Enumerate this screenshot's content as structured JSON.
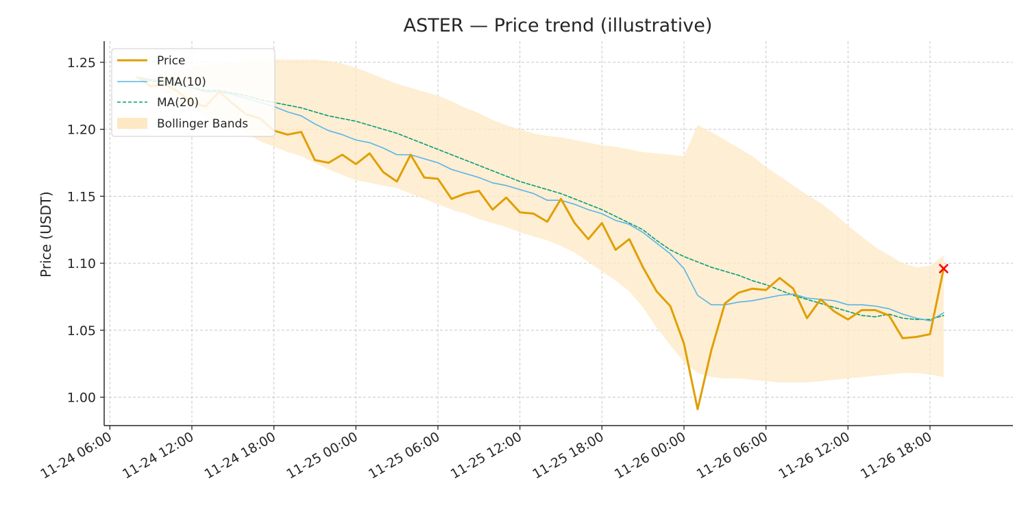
{
  "chart_data": {
    "type": "line",
    "title": "ASTER — Price trend (illustrative)",
    "xlabel": "",
    "ylabel": "Price (USDT)",
    "ylim": [
      0.9788,
      1.2658
    ],
    "yticks": [
      1.0,
      1.05,
      1.1,
      1.15,
      1.2,
      1.25
    ],
    "ytick_labels": [
      "1.00",
      "1.05",
      "1.10",
      "1.15",
      "1.20",
      "1.25"
    ],
    "xlim": [
      "11-24 05:35",
      "11-27 00:04"
    ],
    "xticks": [
      "11-24 06:00",
      "11-24 12:00",
      "11-24 18:00",
      "11-25 00:00",
      "11-25 06:00",
      "11-25 12:00",
      "11-25 18:00",
      "11-26 00:00",
      "11-26 06:00",
      "11-26 12:00",
      "11-26 18:00"
    ],
    "xtick_labels": [
      "11-24 06:00",
      "11-24 12:00",
      "11-24 18:00",
      "11-25 00:00",
      "11-25 06:00",
      "11-25 12:00",
      "11-25 18:00",
      "11-26 00:00",
      "11-26 06:00",
      "11-26 12:00",
      "11-26 18:00"
    ],
    "grid": true,
    "legend_position": "top-left",
    "x": [
      "11-24 08:00",
      "11-24 09:00",
      "11-24 10:00",
      "11-24 11:00",
      "11-24 12:00",
      "11-24 13:00",
      "11-24 14:00",
      "11-24 15:00",
      "11-24 16:00",
      "11-24 17:00",
      "11-24 18:00",
      "11-24 19:00",
      "11-24 20:00",
      "11-24 21:00",
      "11-24 22:00",
      "11-24 23:00",
      "11-25 00:00",
      "11-25 01:00",
      "11-25 02:00",
      "11-25 03:00",
      "11-25 04:00",
      "11-25 05:00",
      "11-25 06:00",
      "11-25 07:00",
      "11-25 08:00",
      "11-25 09:00",
      "11-25 10:00",
      "11-25 11:00",
      "11-25 12:00",
      "11-25 13:00",
      "11-25 14:00",
      "11-25 15:00",
      "11-25 16:00",
      "11-25 17:00",
      "11-25 18:00",
      "11-25 19:00",
      "11-25 20:00",
      "11-25 21:00",
      "11-25 22:00",
      "11-25 23:00",
      "11-26 00:00",
      "11-26 01:00",
      "11-26 02:00",
      "11-26 03:00",
      "11-26 04:00",
      "11-26 05:00",
      "11-26 06:00",
      "11-26 07:00",
      "11-26 08:00",
      "11-26 09:00",
      "11-26 10:00",
      "11-26 11:00",
      "11-26 12:00",
      "11-26 13:00",
      "11-26 14:00",
      "11-26 15:00",
      "11-26 16:00",
      "11-26 17:00",
      "11-26 18:00",
      "11-26 19:00"
    ],
    "series": [
      {
        "name": "Price",
        "color": "#E09F00",
        "style": "solid",
        "values": [
          1.239,
          1.232,
          1.234,
          1.228,
          1.22,
          1.217,
          1.228,
          1.219,
          1.211,
          1.208,
          1.199,
          1.196,
          1.198,
          1.177,
          1.175,
          1.181,
          1.174,
          1.182,
          1.168,
          1.161,
          1.181,
          1.164,
          1.163,
          1.148,
          1.152,
          1.154,
          1.14,
          1.149,
          1.138,
          1.137,
          1.131,
          1.148,
          1.13,
          1.118,
          1.13,
          1.11,
          1.118,
          1.097,
          1.079,
          1.068,
          1.04,
          0.991,
          1.035,
          1.07,
          1.078,
          1.081,
          1.08,
          1.089,
          1.081,
          1.059,
          1.073,
          1.064,
          1.058,
          1.065,
          1.065,
          1.061,
          1.044,
          1.045,
          1.047,
          1.096
        ]
      },
      {
        "name": "EMA(10)",
        "color": "#56B4E9",
        "style": "solid",
        "values": [
          1.239,
          1.237,
          1.236,
          1.234,
          1.231,
          1.228,
          1.228,
          1.226,
          1.223,
          1.22,
          1.217,
          1.213,
          1.21,
          1.204,
          1.199,
          1.196,
          1.192,
          1.19,
          1.186,
          1.181,
          1.181,
          1.178,
          1.175,
          1.17,
          1.167,
          1.164,
          1.16,
          1.158,
          1.155,
          1.152,
          1.147,
          1.147,
          1.144,
          1.14,
          1.137,
          1.132,
          1.129,
          1.123,
          1.115,
          1.107,
          1.096,
          1.076,
          1.069,
          1.069,
          1.071,
          1.072,
          1.074,
          1.076,
          1.077,
          1.074,
          1.073,
          1.072,
          1.069,
          1.069,
          1.068,
          1.066,
          1.062,
          1.059,
          1.057,
          1.063
        ]
      },
      {
        "name": "MA(20)",
        "color": "#009E73",
        "style": "dashed",
        "values": [
          1.239,
          1.236,
          1.235,
          1.233,
          1.231,
          1.229,
          1.229,
          1.227,
          1.225,
          1.222,
          1.22,
          1.218,
          1.216,
          1.213,
          1.21,
          1.208,
          1.206,
          1.203,
          1.2,
          1.197,
          1.193,
          1.189,
          1.185,
          1.181,
          1.177,
          1.173,
          1.169,
          1.165,
          1.161,
          1.158,
          1.155,
          1.152,
          1.148,
          1.144,
          1.14,
          1.135,
          1.13,
          1.125,
          1.117,
          1.11,
          1.105,
          1.101,
          1.097,
          1.094,
          1.091,
          1.087,
          1.084,
          1.08,
          1.076,
          1.073,
          1.07,
          1.067,
          1.064,
          1.061,
          1.06,
          1.062,
          1.059,
          1.058,
          1.058,
          1.061
        ]
      }
    ],
    "bands": {
      "name": "Bollinger Bands",
      "color": "#FDE8C4",
      "upper": [
        1.239,
        1.24,
        1.242,
        1.244,
        1.246,
        1.248,
        1.249,
        1.25,
        1.251,
        1.252,
        1.252,
        1.252,
        1.252,
        1.252,
        1.251,
        1.249,
        1.246,
        1.242,
        1.238,
        1.234,
        1.231,
        1.228,
        1.225,
        1.221,
        1.216,
        1.212,
        1.207,
        1.203,
        1.2,
        1.197,
        1.195,
        1.194,
        1.192,
        1.19,
        1.188,
        1.187,
        1.185,
        1.183,
        1.182,
        1.181,
        1.18,
        1.203,
        1.198,
        1.192,
        1.186,
        1.18,
        1.172,
        1.165,
        1.158,
        1.151,
        1.145,
        1.137,
        1.128,
        1.12,
        1.112,
        1.106,
        1.1,
        1.097,
        1.098,
        1.106
      ],
      "lower": [
        1.239,
        1.232,
        1.228,
        1.222,
        1.216,
        1.21,
        1.207,
        1.202,
        1.197,
        1.191,
        1.187,
        1.183,
        1.18,
        1.175,
        1.17,
        1.166,
        1.162,
        1.16,
        1.158,
        1.156,
        1.152,
        1.148,
        1.144,
        1.14,
        1.137,
        1.133,
        1.13,
        1.127,
        1.123,
        1.12,
        1.117,
        1.113,
        1.108,
        1.101,
        1.094,
        1.087,
        1.079,
        1.067,
        1.052,
        1.039,
        1.026,
        1.018,
        1.015,
        1.014,
        1.014,
        1.013,
        1.012,
        1.011,
        1.011,
        1.011,
        1.012,
        1.013,
        1.014,
        1.015,
        1.016,
        1.017,
        1.018,
        1.018,
        1.017,
        1.015
      ]
    },
    "last_point_marker": {
      "label": "×",
      "color": "#FF0000",
      "value": 1.096,
      "x": "11-26 19:00"
    }
  }
}
